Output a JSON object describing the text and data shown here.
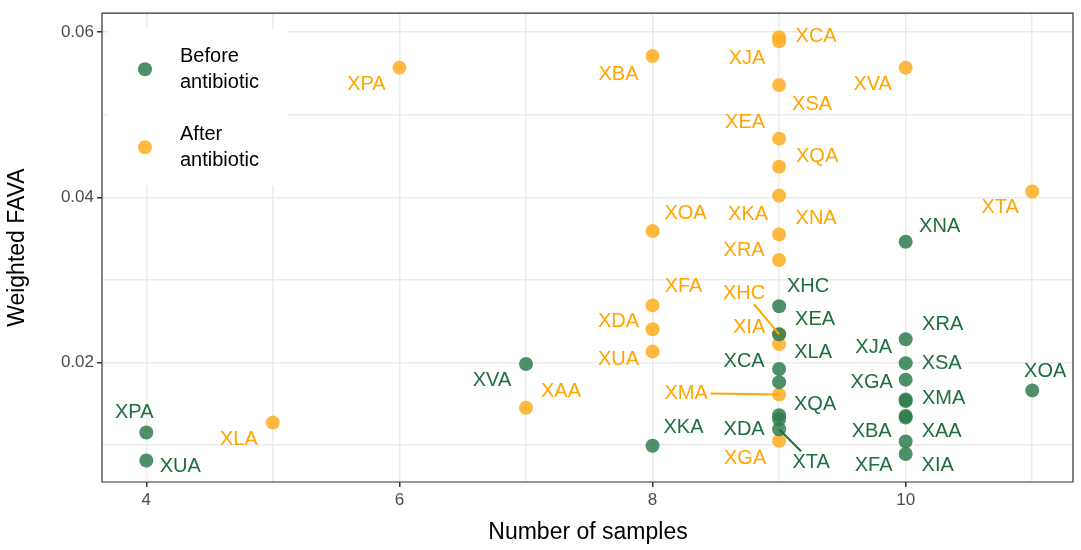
{
  "chart_data": {
    "type": "scatter",
    "xlabel": "Number of samples",
    "ylabel": "Weighted FAVA",
    "legend": "top left",
    "grid": true,
    "marker": "circle",
    "xlim": [
      3.65,
      11.33
    ],
    "xticks": [
      4,
      {
        "value": 5,
        "label": null
      },
      6,
      {
        "value": 7,
        "label": null
      },
      8,
      {
        "value": 9,
        "label": null
      },
      10,
      {
        "value": 11,
        "label": null
      }
    ],
    "ylim": [
      0.0055,
      0.0623
    ],
    "yticks": [
      {
        "value": 0.01,
        "label": null
      },
      0.02,
      {
        "value": 0.03,
        "label": null
      },
      0.04,
      {
        "value": 0.05,
        "label": null
      },
      0.06
    ],
    "series": [
      {
        "name": "Before antibiotic",
        "color": "#2e7d4f",
        "x": [
          4,
          4,
          7,
          8,
          9,
          9,
          9,
          9,
          9,
          9,
          9,
          10,
          10,
          10,
          10,
          10,
          10,
          10,
          10,
          10,
          10,
          11
        ],
        "values": [
          0.0115,
          0.0081,
          0.0198,
          0.0099,
          0.0268,
          0.0234,
          0.0192,
          0.0176,
          0.0136,
          0.0131,
          0.0119,
          0.0346,
          0.0228,
          0.0199,
          0.0179,
          0.0155,
          0.0153,
          0.0135,
          0.0133,
          0.0104,
          0.0089,
          0.0166
        ],
        "value_labels": [
          "XPA",
          "XUA",
          "XVA",
          "XKA",
          "XHC",
          "XEA",
          "XLA",
          "XCA",
          "XQA",
          "XDA",
          "XTA",
          "XNA",
          "XRA",
          "XJA",
          "XSA",
          "XGA",
          "XMA",
          "XBA",
          "XAA",
          "XFA",
          "XIA",
          "XOA"
        ]
      },
      {
        "name": "After antibiotic",
        "color": "#ffad1f",
        "x": [
          6,
          5,
          7,
          8,
          8,
          8,
          8,
          8,
          9,
          9,
          9,
          9,
          9,
          9,
          9,
          9,
          9,
          9,
          9,
          9,
          10,
          11
        ],
        "values": [
          0.0557,
          0.0127,
          0.0145,
          0.0571,
          0.0359,
          0.0269,
          0.024,
          0.0213,
          0.0594,
          0.0589,
          0.0536,
          0.0471,
          0.0437,
          0.0402,
          0.0355,
          0.0324,
          0.0234,
          0.0222,
          0.0161,
          0.0105,
          0.0557,
          0.0407
        ],
        "value_labels": [
          "XPA",
          "XLA",
          "XAA",
          "XBA",
          "XOA",
          "XFA",
          "XDA",
          "XUA",
          "XCA",
          "XJA",
          "XSA",
          "XEA",
          "XQA",
          "XKA",
          "XNA",
          "XRA",
          "XHC",
          "XIA",
          "XMA",
          "XGA",
          "XVA",
          "XTA"
        ]
      }
    ]
  }
}
